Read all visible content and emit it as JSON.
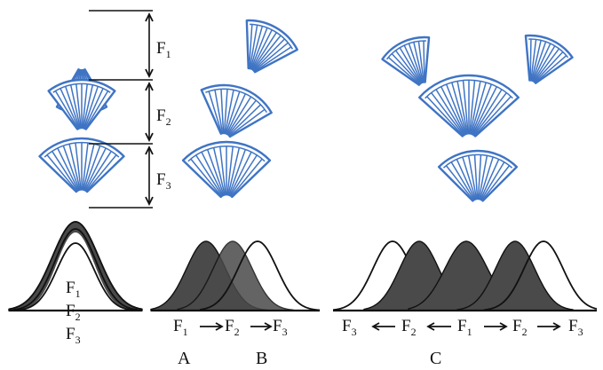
{
  "labels": {
    "F": "F",
    "sub1": "1",
    "sub2": "2",
    "sub3": "3"
  },
  "panels": [
    "A",
    "B",
    "C"
  ],
  "colors": {
    "fan_stroke": "#3f74c4",
    "curve_shade": "#4a4a4a",
    "ink": "#111111"
  }
}
